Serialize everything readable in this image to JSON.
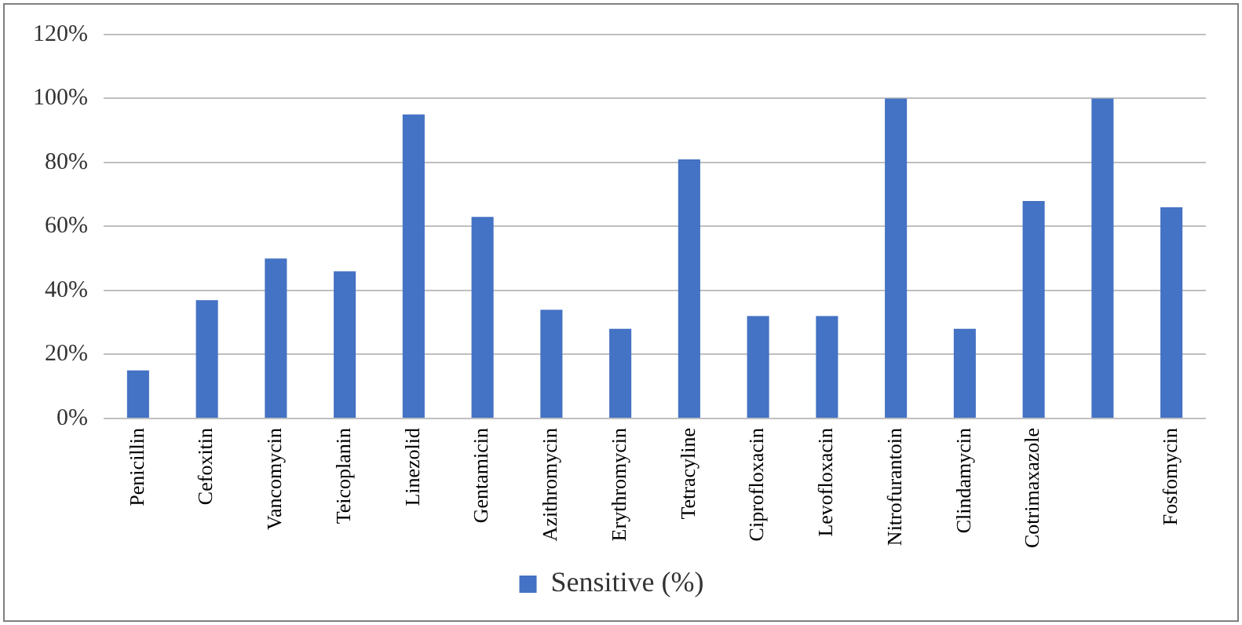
{
  "chart_data": {
    "type": "bar",
    "categories": [
      "Penicillin",
      "Cefoxitin",
      "Vancomycin",
      "Teicoplanin",
      "Linezolid",
      "Gentamicin",
      "Azithromycin",
      "Erythromycin",
      "Tetracyline",
      "Ciprofloxacin",
      "Levofloxacin",
      "Nitrofurantoin",
      "Clindamycin",
      "Cotrimaxazole",
      null,
      "Fosfomycin"
    ],
    "series": [
      {
        "name": "Sensitive (%)",
        "color": "#4472c4",
        "values": [
          15,
          37,
          50,
          46,
          95,
          63,
          34,
          28,
          81,
          32,
          32,
          100,
          28,
          68,
          100,
          66
        ]
      }
    ],
    "ylim": [
      0,
      120
    ],
    "yticks": [
      {
        "value": 0,
        "label": "0%"
      },
      {
        "value": 20,
        "label": "20%"
      },
      {
        "value": 40,
        "label": "40%"
      },
      {
        "value": 60,
        "label": "60%"
      },
      {
        "value": 80,
        "label": "80%"
      },
      {
        "value": 100,
        "label": "100%"
      },
      {
        "value": 120,
        "label": "120%"
      }
    ],
    "grid": "y",
    "legend": "bottom"
  }
}
